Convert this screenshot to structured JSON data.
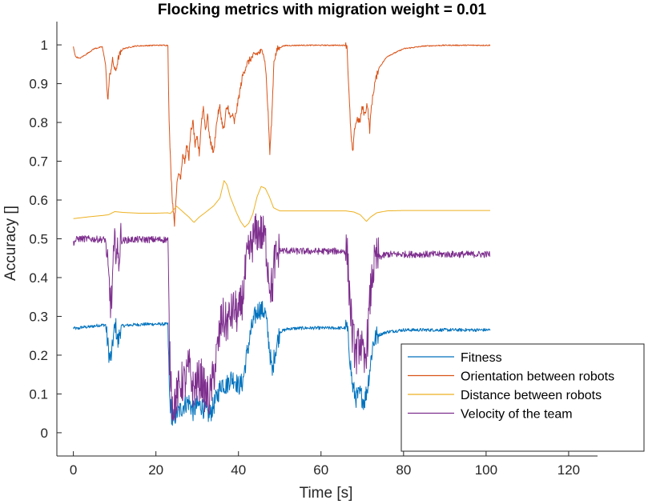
{
  "chart_data": {
    "type": "line",
    "title": "Flocking metrics with migration weight = 0.01",
    "xlabel": "Time [s]",
    "ylabel": "Accuracy []",
    "xlim": [
      -4,
      127
    ],
    "ylim": [
      -0.06,
      1.06
    ],
    "xticks": [
      0,
      20,
      40,
      60,
      80,
      100,
      120
    ],
    "xtick_labels": [
      "0",
      "20",
      "40",
      "60",
      "80",
      "100",
      "120"
    ],
    "yticks": [
      0,
      0.1,
      0.2,
      0.3,
      0.4,
      0.5,
      0.6,
      0.7,
      0.8,
      0.9,
      1
    ],
    "ytick_labels": [
      "0",
      "0.1",
      "0.2",
      "0.3",
      "0.4",
      "0.5",
      "0.6",
      "0.7",
      "0.8",
      "0.9",
      "1"
    ],
    "grid": false,
    "legend_position": "bottom-right",
    "series": [
      {
        "name": "Fitness",
        "color": "#0072BD",
        "noise": 0.012,
        "points": [
          [
            0,
            0.27
          ],
          [
            1,
            0.268
          ],
          [
            2,
            0.272
          ],
          [
            4,
            0.273
          ],
          [
            6,
            0.277
          ],
          [
            7.8,
            0.278
          ],
          [
            8.2,
            0.24
          ],
          [
            8.8,
            0.19
          ],
          [
            9.3,
            0.2
          ],
          [
            9.6,
            0.24
          ],
          [
            10.2,
            0.28
          ],
          [
            10.8,
            0.23
          ],
          [
            11.5,
            0.275
          ],
          [
            14,
            0.278
          ],
          [
            18,
            0.28
          ],
          [
            22.9,
            0.28
          ],
          [
            23.3,
            0.09
          ],
          [
            24,
            0.03
          ],
          [
            25,
            0.05
          ],
          [
            26,
            0.06
          ],
          [
            27,
            0.075
          ],
          [
            28,
            0.08
          ],
          [
            29,
            0.055
          ],
          [
            30,
            0.07
          ],
          [
            31,
            0.07
          ],
          [
            32,
            0.055
          ],
          [
            33,
            0.045
          ],
          [
            34,
            0.07
          ],
          [
            35,
            0.1
          ],
          [
            36,
            0.13
          ],
          [
            37,
            0.12
          ],
          [
            38,
            0.14
          ],
          [
            39,
            0.14
          ],
          [
            40,
            0.12
          ],
          [
            41,
            0.13
          ],
          [
            42,
            0.2
          ],
          [
            43,
            0.26
          ],
          [
            44,
            0.3
          ],
          [
            45,
            0.32
          ],
          [
            46.5,
            0.31
          ],
          [
            47.5,
            0.22
          ],
          [
            48.2,
            0.15
          ],
          [
            48.7,
            0.2
          ],
          [
            50,
            0.26
          ],
          [
            52,
            0.268
          ],
          [
            56,
            0.27
          ],
          [
            60,
            0.27
          ],
          [
            63,
            0.27
          ],
          [
            66.3,
            0.27
          ],
          [
            66.8,
            0.22
          ],
          [
            67.6,
            0.12
          ],
          [
            68.5,
            0.09
          ],
          [
            69.5,
            0.1
          ],
          [
            70.5,
            0.08
          ],
          [
            71.3,
            0.12
          ],
          [
            72,
            0.18
          ],
          [
            72.6,
            0.23
          ],
          [
            73.5,
            0.25
          ],
          [
            76,
            0.26
          ],
          [
            80,
            0.265
          ],
          [
            85,
            0.265
          ],
          [
            90,
            0.265
          ],
          [
            95,
            0.265
          ],
          [
            101,
            0.265
          ]
        ]
      },
      {
        "name": "Orientation between robots",
        "color": "#D95319",
        "noise": 0.004,
        "points": [
          [
            0,
            0.995
          ],
          [
            0.5,
            0.97
          ],
          [
            1.5,
            0.965
          ],
          [
            3,
            0.975
          ],
          [
            5,
            0.99
          ],
          [
            7,
            0.995
          ],
          [
            7.8,
            0.95
          ],
          [
            8.3,
            0.855
          ],
          [
            8.8,
            0.92
          ],
          [
            9.5,
            0.96
          ],
          [
            10.2,
            0.93
          ],
          [
            11,
            0.97
          ],
          [
            12,
            0.99
          ],
          [
            15,
            0.997
          ],
          [
            20,
            0.999
          ],
          [
            22.9,
            0.999
          ],
          [
            23.2,
            0.8
          ],
          [
            23.6,
            0.68
          ],
          [
            24,
            0.6
          ],
          [
            24.5,
            0.54
          ],
          [
            25,
            0.63
          ],
          [
            25.5,
            0.67
          ],
          [
            26,
            0.66
          ],
          [
            26.5,
            0.72
          ],
          [
            27,
            0.7
          ],
          [
            27.5,
            0.74
          ],
          [
            28,
            0.71
          ],
          [
            28.5,
            0.78
          ],
          [
            29,
            0.8
          ],
          [
            29.5,
            0.74
          ],
          [
            30,
            0.76
          ],
          [
            30.5,
            0.72
          ],
          [
            31,
            0.8
          ],
          [
            31.5,
            0.84
          ],
          [
            32,
            0.78
          ],
          [
            32.5,
            0.82
          ],
          [
            33,
            0.76
          ],
          [
            33.5,
            0.74
          ],
          [
            34,
            0.72
          ],
          [
            34.5,
            0.78
          ],
          [
            35,
            0.82
          ],
          [
            35.5,
            0.84
          ],
          [
            36,
            0.8
          ],
          [
            36.5,
            0.78
          ],
          [
            37,
            0.83
          ],
          [
            37.5,
            0.84
          ],
          [
            38,
            0.81
          ],
          [
            38.5,
            0.82
          ],
          [
            39,
            0.8
          ],
          [
            40,
            0.86
          ],
          [
            41,
            0.92
          ],
          [
            42,
            0.95
          ],
          [
            43,
            0.965
          ],
          [
            44,
            0.975
          ],
          [
            45,
            0.98
          ],
          [
            46,
            0.985
          ],
          [
            46.6,
            0.94
          ],
          [
            47.2,
            0.82
          ],
          [
            47.6,
            0.72
          ],
          [
            48.1,
            0.82
          ],
          [
            48.6,
            0.96
          ],
          [
            49.5,
            0.99
          ],
          [
            51,
            0.998
          ],
          [
            55,
            0.999
          ],
          [
            60,
            0.999
          ],
          [
            63,
            0.999
          ],
          [
            66.3,
            0.999
          ],
          [
            66.7,
            0.89
          ],
          [
            67.3,
            0.76
          ],
          [
            67.7,
            0.72
          ],
          [
            68.2,
            0.79
          ],
          [
            68.8,
            0.81
          ],
          [
            69.4,
            0.8
          ],
          [
            70,
            0.84
          ],
          [
            70.6,
            0.82
          ],
          [
            71.2,
            0.85
          ],
          [
            71.8,
            0.78
          ],
          [
            72.2,
            0.84
          ],
          [
            73,
            0.9
          ],
          [
            74,
            0.94
          ],
          [
            76,
            0.97
          ],
          [
            80,
            0.99
          ],
          [
            85,
            0.997
          ],
          [
            90,
            0.999
          ],
          [
            95,
            0.999
          ],
          [
            101,
            0.999
          ]
        ]
      },
      {
        "name": "Distance between robots",
        "color": "#EDB120",
        "noise": 0.0,
        "points": [
          [
            0,
            0.552
          ],
          [
            4,
            0.557
          ],
          [
            7,
            0.56
          ],
          [
            8.5,
            0.562
          ],
          [
            10,
            0.57
          ],
          [
            12,
            0.568
          ],
          [
            16,
            0.566
          ],
          [
            20,
            0.566
          ],
          [
            22.9,
            0.567
          ],
          [
            23.5,
            0.565
          ],
          [
            25,
            0.584
          ],
          [
            26.5,
            0.57
          ],
          [
            28,
            0.556
          ],
          [
            29.2,
            0.542
          ],
          [
            30.5,
            0.556
          ],
          [
            32,
            0.568
          ],
          [
            34,
            0.585
          ],
          [
            35.5,
            0.605
          ],
          [
            36.5,
            0.65
          ],
          [
            37.2,
            0.64
          ],
          [
            38,
            0.608
          ],
          [
            39.5,
            0.568
          ],
          [
            40.5,
            0.545
          ],
          [
            41.5,
            0.53
          ],
          [
            42.5,
            0.54
          ],
          [
            43.5,
            0.565
          ],
          [
            44.5,
            0.608
          ],
          [
            45.5,
            0.635
          ],
          [
            46.5,
            0.63
          ],
          [
            47.5,
            0.608
          ],
          [
            48.5,
            0.58
          ],
          [
            50,
            0.572
          ],
          [
            54,
            0.572
          ],
          [
            58,
            0.572
          ],
          [
            62,
            0.572
          ],
          [
            66,
            0.572
          ],
          [
            68,
            0.569
          ],
          [
            69.5,
            0.562
          ],
          [
            71,
            0.545
          ],
          [
            72,
            0.556
          ],
          [
            73.5,
            0.567
          ],
          [
            76,
            0.572
          ],
          [
            80,
            0.573
          ],
          [
            85,
            0.573
          ],
          [
            90,
            0.573
          ],
          [
            95,
            0.573
          ],
          [
            101,
            0.573
          ]
        ]
      },
      {
        "name": "Velocity of the team",
        "color": "#7E2F8E",
        "noise": 0.025,
        "points": [
          [
            0,
            0.49
          ],
          [
            1,
            0.5
          ],
          [
            3,
            0.5
          ],
          [
            5,
            0.499
          ],
          [
            7.8,
            0.498
          ],
          [
            8.2,
            0.43
          ],
          [
            8.8,
            0.36
          ],
          [
            9.2,
            0.33
          ],
          [
            9.6,
            0.42
          ],
          [
            10.2,
            0.5
          ],
          [
            10.8,
            0.44
          ],
          [
            11.5,
            0.495
          ],
          [
            14,
            0.498
          ],
          [
            18,
            0.498
          ],
          [
            22.9,
            0.498
          ],
          [
            23.3,
            0.2
          ],
          [
            24,
            0.07
          ],
          [
            25,
            0.09
          ],
          [
            26,
            0.13
          ],
          [
            27,
            0.13
          ],
          [
            28,
            0.17
          ],
          [
            29,
            0.11
          ],
          [
            30,
            0.13
          ],
          [
            31,
            0.14
          ],
          [
            32,
            0.1
          ],
          [
            33,
            0.09
          ],
          [
            34,
            0.15
          ],
          [
            35,
            0.22
          ],
          [
            36,
            0.3
          ],
          [
            37,
            0.28
          ],
          [
            38,
            0.3
          ],
          [
            39,
            0.32
          ],
          [
            40,
            0.3
          ],
          [
            41,
            0.35
          ],
          [
            42,
            0.44
          ],
          [
            43,
            0.48
          ],
          [
            44,
            0.51
          ],
          [
            45,
            0.52
          ],
          [
            46.5,
            0.5
          ],
          [
            47.5,
            0.39
          ],
          [
            48.2,
            0.37
          ],
          [
            48.7,
            0.44
          ],
          [
            50,
            0.47
          ],
          [
            54,
            0.468
          ],
          [
            60,
            0.468
          ],
          [
            63,
            0.468
          ],
          [
            66.3,
            0.468
          ],
          [
            66.8,
            0.38
          ],
          [
            67.6,
            0.25
          ],
          [
            68.5,
            0.2
          ],
          [
            69.5,
            0.24
          ],
          [
            70.5,
            0.17
          ],
          [
            71.3,
            0.25
          ],
          [
            72,
            0.36
          ],
          [
            72.6,
            0.42
          ],
          [
            73.5,
            0.45
          ],
          [
            76,
            0.46
          ],
          [
            80,
            0.46
          ],
          [
            85,
            0.46
          ],
          [
            90,
            0.46
          ],
          [
            95,
            0.46
          ],
          [
            101,
            0.46
          ]
        ]
      }
    ]
  }
}
